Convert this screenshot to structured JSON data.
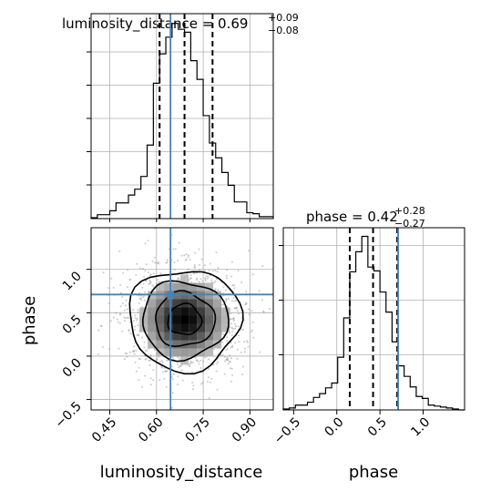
{
  "chart_data": {
    "type": "corner",
    "parameters": [
      "luminosity_distance",
      "phase"
    ],
    "truths": {
      "luminosity_distance": 0.645,
      "phase": 0.71
    },
    "titles": [
      {
        "param": "luminosity_distance",
        "text": "luminosity_distance = 0.69",
        "plus": "+0.09",
        "minus": "−0.08"
      },
      {
        "param": "phase",
        "text": "phase = 0.42",
        "plus": "+0.28",
        "minus": "−0.27"
      }
    ],
    "axes": {
      "luminosity_distance": {
        "range": [
          0.39,
          0.975
        ],
        "ticks": [
          0.45,
          0.6,
          0.75,
          0.9
        ],
        "tick_labels": [
          "0.45",
          "0.60",
          "0.75",
          "0.90"
        ],
        "label": "luminosity_distance"
      },
      "phase": {
        "range": [
          -0.62,
          1.48
        ],
        "ticks": [
          -0.5,
          0.0,
          0.5,
          1.0
        ],
        "tick_labels": [
          "−0.5",
          "0.0",
          "0.5",
          "1.0"
        ],
        "label": "phase"
      }
    },
    "hist_luminosity_distance": {
      "bin_edges": [
        0.39,
        0.41,
        0.43,
        0.45,
        0.47,
        0.49,
        0.51,
        0.53,
        0.55,
        0.57,
        0.59,
        0.61,
        0.63,
        0.65,
        0.67,
        0.69,
        0.71,
        0.73,
        0.75,
        0.77,
        0.79,
        0.81,
        0.83,
        0.85,
        0.87,
        0.89,
        0.91,
        0.93,
        0.95,
        0.975
      ],
      "counts": [
        1,
        4,
        4,
        8,
        16,
        16,
        24,
        30,
        43,
        75,
        138,
        168,
        185,
        199,
        193,
        190,
        161,
        142,
        105,
        77,
        62,
        47,
        34,
        17,
        17,
        6,
        5,
        2,
        2
      ],
      "quantiles": [
        0.61,
        0.69,
        0.78
      ]
    },
    "hist_phase": {
      "bin_edges": [
        -0.62,
        -0.55,
        -0.48,
        -0.41,
        -0.34,
        -0.27,
        -0.2,
        -0.13,
        -0.06,
        0.01,
        0.08,
        0.15,
        0.22,
        0.29,
        0.36,
        0.43,
        0.5,
        0.57,
        0.64,
        0.71,
        0.78,
        0.85,
        0.92,
        0.99,
        1.06,
        1.13,
        1.2,
        1.27,
        1.34,
        1.41,
        1.48
      ],
      "counts": [
        1,
        2,
        5,
        5,
        8,
        13,
        17,
        23,
        28,
        55,
        96,
        144,
        165,
        181,
        149,
        145,
        123,
        102,
        71,
        46,
        35,
        24,
        14,
        12,
        5,
        4,
        3,
        2,
        1,
        0
      ],
      "quantiles": [
        0.15,
        0.42,
        0.7
      ]
    },
    "scatter_2d": {
      "x_param": "luminosity_distance",
      "y_param": "phase",
      "center": [
        0.69,
        0.42
      ],
      "spread": [
        0.08,
        0.27
      ],
      "contour_levels": [
        "0.5 sigma",
        "1 sigma",
        "1.5 sigma",
        "2 sigma"
      ]
    },
    "colors": {
      "truth": "#4682b4",
      "hist": "#000000",
      "grid": "#b0b0b0"
    }
  }
}
